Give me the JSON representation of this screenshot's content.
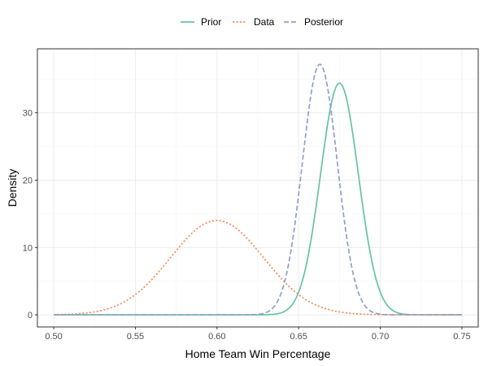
{
  "chart_data": {
    "type": "line",
    "title": "",
    "xlabel": "Home Team Win Percentage",
    "ylabel": "Density",
    "xlim": [
      0.49,
      0.76
    ],
    "ylim": [
      -1.8,
      39.5
    ],
    "x_ticks": [
      0.5,
      0.55,
      0.6,
      0.65,
      0.7,
      0.75
    ],
    "x_tick_labels": [
      "0.50",
      "0.55",
      "0.60",
      "0.65",
      "0.70",
      "0.75"
    ],
    "y_ticks": [
      0,
      10,
      20,
      30
    ],
    "y_tick_labels": [
      "0",
      "10",
      "20",
      "30"
    ],
    "grid": true,
    "legend_position": "top",
    "series": [
      {
        "name": "Prior",
        "color": "#66c2a5",
        "dash": "solid",
        "mean": 0.675,
        "peak": 34.4,
        "x_range": [
          0.5,
          0.75
        ]
      },
      {
        "name": "Data",
        "color": "#fc8d62",
        "dash": "dotted",
        "mean": 0.6,
        "peak": 14.0,
        "x_range": [
          0.5,
          0.75
        ]
      },
      {
        "name": "Posterior",
        "color": "#8da0cb",
        "dash": "dashed",
        "mean": 0.663,
        "peak": 37.2,
        "x_range": [
          0.5,
          0.75
        ]
      }
    ]
  }
}
